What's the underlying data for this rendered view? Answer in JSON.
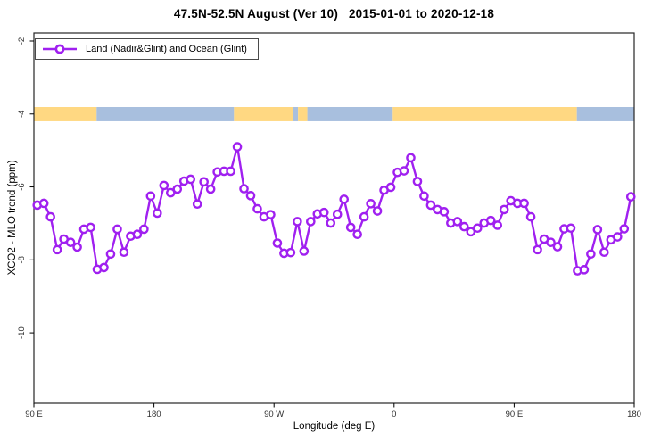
{
  "title": "47.5N-52.5N August (Ver 10)   2015-01-01 to 2020-12-18",
  "legend": {
    "label": "Land (Nadir&Glint) and Ocean (Glint)",
    "marker_color": "#A020F0"
  },
  "chart_data": {
    "type": "line",
    "title": "47.5N-52.5N August (Ver 10)   2015-01-01 to 2020-12-18",
    "xlabel": "Longitude (deg E)",
    "ylabel": "XCO2 - MLO trend (ppm)",
    "xlim": [
      90,
      540
    ],
    "ylim": [
      -11.93,
      -1.78
    ],
    "grid": false,
    "legend_position": "top-left",
    "x_ticks": [
      {
        "pos": 90,
        "label": "90 E"
      },
      {
        "pos": 180,
        "label": "180"
      },
      {
        "pos": 270,
        "label": "90 W"
      },
      {
        "pos": 360,
        "label": "0"
      },
      {
        "pos": 450,
        "label": "90 E"
      },
      {
        "pos": 540,
        "label": "180"
      }
    ],
    "y_ticks": [
      {
        "pos": -2,
        "label": "-2"
      },
      {
        "pos": -4,
        "label": "-4"
      },
      {
        "pos": -6,
        "label": "-6"
      },
      {
        "pos": -8,
        "label": "-8"
      },
      {
        "pos": -10,
        "label": "-10"
      }
    ],
    "band": {
      "description": "land/ocean surface strip drawn across the plot near y=-4",
      "value_top": -3.81,
      "value_bottom": -4.2,
      "colors": {
        "land": "#FFD882",
        "ocean": "#A8BFDE"
      },
      "segments": [
        {
          "surface": "land",
          "from": 90,
          "to": 137
        },
        {
          "surface": "ocean",
          "from": 137,
          "to": 240
        },
        {
          "surface": "land",
          "from": 240,
          "to": 284
        },
        {
          "surface": "ocean",
          "from": 284,
          "to": 288
        },
        {
          "surface": "land",
          "from": 288,
          "to": 295
        },
        {
          "surface": "ocean",
          "from": 295,
          "to": 359
        },
        {
          "surface": "land",
          "from": 359,
          "to": 497
        },
        {
          "surface": "ocean",
          "from": 497,
          "to": 540
        }
      ]
    },
    "series": [
      {
        "name": "Land (Nadir&Glint) and Ocean (Glint)",
        "color": "#A020F0",
        "marker": "open-circle",
        "x_axis_position": [
          92.5,
          97.5,
          102.5,
          107.5,
          112.5,
          117.5,
          122.5,
          127.5,
          132.5,
          137.5,
          142.5,
          147.5,
          152.5,
          157.5,
          162.5,
          167.5,
          172.5,
          177.5,
          182.5,
          187.5,
          192.5,
          197.5,
          202.5,
          207.5,
          212.5,
          217.5,
          222.5,
          227.5,
          232.5,
          237.5,
          242.5,
          247.5,
          252.5,
          257.5,
          262.5,
          267.5,
          272.5,
          277.5,
          282.5,
          287.5,
          292.5,
          297.5,
          302.5,
          307.5,
          312.5,
          317.5,
          322.5,
          327.5,
          332.5,
          337.5,
          342.5,
          347.5,
          352.5,
          357.5,
          362.5,
          367.5,
          372.5,
          377.5,
          382.5,
          387.5,
          392.5,
          397.5,
          402.5,
          407.5,
          412.5,
          417.5,
          422.5,
          427.5,
          432.5,
          437.5,
          442.5,
          447.5,
          452.5,
          457.5,
          462.5,
          467.5,
          472.5,
          477.5,
          482.5,
          487.5,
          492.5,
          497.5,
          502.5,
          507.5,
          512.5,
          517.5,
          522.5,
          527.5,
          532.5,
          537.5
        ],
        "longitude_deg_e": [
          92.5,
          97.5,
          102.5,
          107.5,
          112.5,
          117.5,
          122.5,
          127.5,
          132.5,
          137.5,
          142.5,
          147.5,
          152.5,
          157.5,
          162.5,
          167.5,
          172.5,
          177.5,
          182.5,
          187.5,
          192.5,
          197.5,
          202.5,
          207.5,
          212.5,
          217.5,
          222.5,
          227.5,
          232.5,
          237.5,
          242.5,
          247.5,
          252.5,
          257.5,
          262.5,
          267.5,
          272.5,
          277.5,
          282.5,
          287.5,
          292.5,
          297.5,
          302.5,
          307.5,
          312.5,
          317.5,
          322.5,
          327.5,
          332.5,
          337.5,
          342.5,
          347.5,
          352.5,
          357.5,
          2.5,
          7.5,
          12.5,
          17.5,
          22.5,
          27.5,
          32.5,
          37.5,
          42.5,
          47.5,
          52.5,
          57.5,
          62.5,
          67.5,
          72.5,
          77.5,
          82.5,
          87.5,
          92.5,
          97.5,
          102.5,
          107.5,
          112.5,
          117.5,
          122.5,
          127.5,
          132.5,
          137.5,
          142.5,
          147.5,
          152.5,
          157.5,
          162.5,
          167.5,
          172.5,
          177.5
        ],
        "values": [
          -6.5,
          -6.45,
          -6.82,
          -7.72,
          -7.43,
          -7.52,
          -7.65,
          -7.16,
          -7.11,
          -8.26,
          -8.21,
          -7.84,
          -7.16,
          -7.79,
          -7.35,
          -7.3,
          -7.16,
          -6.25,
          -6.72,
          -5.96,
          -6.16,
          -6.06,
          -5.84,
          -5.79,
          -6.47,
          -5.86,
          -6.06,
          -5.59,
          -5.57,
          -5.57,
          -4.9,
          -6.05,
          -6.24,
          -6.6,
          -6.82,
          -6.76,
          -7.54,
          -7.82,
          -7.8,
          -6.95,
          -7.76,
          -6.95,
          -6.74,
          -6.7,
          -6.99,
          -6.75,
          -6.34,
          -7.11,
          -7.3,
          -6.82,
          -6.46,
          -6.66,
          -6.09,
          -6.01,
          -5.6,
          -5.56,
          -5.2,
          -5.85,
          -6.25,
          -6.5,
          -6.62,
          -6.68,
          -6.99,
          -6.95,
          -7.09,
          -7.23,
          -7.13,
          -6.99,
          -6.92,
          -7.05,
          -6.62,
          -6.38,
          -6.45,
          -6.45,
          -6.82,
          -7.72,
          -7.43,
          -7.52,
          -7.64,
          -7.15,
          -7.13,
          -8.3,
          -8.27,
          -7.84,
          -7.17,
          -7.79,
          -7.45,
          -7.37,
          -7.15,
          -6.27
        ]
      }
    ]
  }
}
